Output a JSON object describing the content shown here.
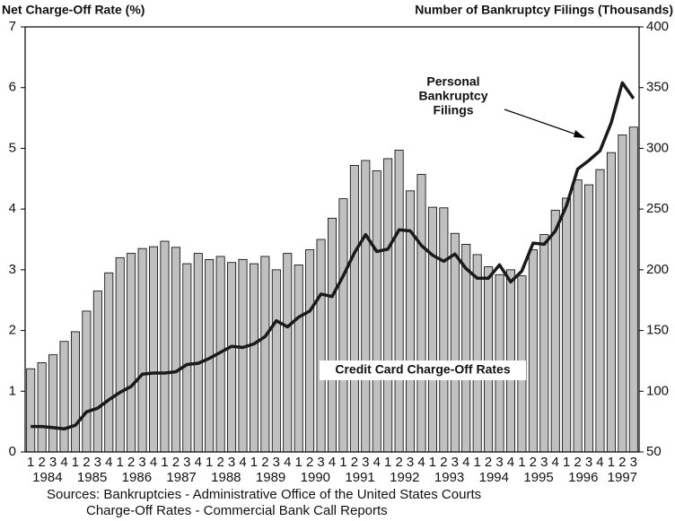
{
  "chart_data": {
    "type": "bar_line",
    "y_title": "Net Charge-Off Rate (%)",
    "y2_title": "Number of Bankruptcy Filings (Thousands)",
    "categories": [
      "1",
      "2",
      "3",
      "4",
      "1",
      "2",
      "3",
      "4",
      "1",
      "2",
      "3",
      "4",
      "1",
      "2",
      "3",
      "4",
      "1",
      "2",
      "3",
      "4",
      "1",
      "2",
      "3",
      "4",
      "1",
      "2",
      "3",
      "4",
      "1",
      "2",
      "3",
      "4",
      "1",
      "2",
      "3",
      "4",
      "1",
      "2",
      "3",
      "4",
      "1",
      "2",
      "3",
      "4",
      "1",
      "2",
      "3",
      "4",
      "1",
      "2",
      "3",
      "4",
      "1",
      "2",
      "3"
    ],
    "year_labels": [
      "1984",
      "1985",
      "1986",
      "1987",
      "1988",
      "1989",
      "1990",
      "1991",
      "1992",
      "1993",
      "1994",
      "1995",
      "1996",
      "1997"
    ],
    "series": [
      {
        "type": "bar",
        "axis": "y",
        "color": "#c0c0c0",
        "values": [
          1.37,
          1.47,
          1.6,
          1.82,
          1.98,
          2.32,
          2.65,
          2.95,
          3.2,
          3.27,
          3.35,
          3.38,
          3.47,
          3.37,
          3.1,
          3.27,
          3.17,
          3.22,
          3.12,
          3.17,
          3.1,
          3.22,
          3.0,
          3.27,
          3.08,
          3.33,
          3.5,
          3.85,
          4.17,
          4.72,
          4.8,
          4.63,
          4.83,
          4.97,
          4.3,
          4.57,
          4.03,
          4.02,
          3.6,
          3.42,
          3.25,
          3.05,
          2.92,
          3.0,
          2.9,
          3.33,
          3.58,
          3.98,
          4.18,
          4.48,
          4.4,
          4.65,
          4.93,
          5.22,
          5.35
        ]
      },
      {
        "type": "line",
        "axis": "y2",
        "color": "#1a1a1a",
        "values": [
          71,
          71,
          70,
          69,
          72,
          83,
          86,
          93,
          99,
          104,
          114,
          115,
          115,
          116,
          122,
          123,
          127,
          132,
          137,
          136,
          139,
          145,
          158,
          153,
          161,
          166,
          180,
          178,
          195,
          214,
          229,
          215,
          217,
          233,
          232,
          220,
          212,
          207,
          213,
          201,
          193,
          193,
          204,
          190,
          199,
          222,
          221,
          232,
          253,
          283,
          290,
          298,
          321,
          354,
          341
        ]
      }
    ],
    "ylim": [
      0,
      7
    ],
    "yticks": [
      0,
      1,
      2,
      3,
      4,
      5,
      6,
      7
    ],
    "y2lim": [
      50,
      400
    ],
    "y2ticks": [
      50,
      100,
      150,
      200,
      250,
      300,
      350,
      400
    ],
    "annotations": {
      "line_label": [
        "Personal",
        "Bankruptcy",
        "Filings"
      ],
      "bar_label": "Credit Card Charge-Off Rates"
    },
    "sources": [
      "Sources: Bankruptcies - Administrative Office of the United States Courts",
      "Charge-Off Rates - Commercial Bank Call Reports"
    ]
  }
}
